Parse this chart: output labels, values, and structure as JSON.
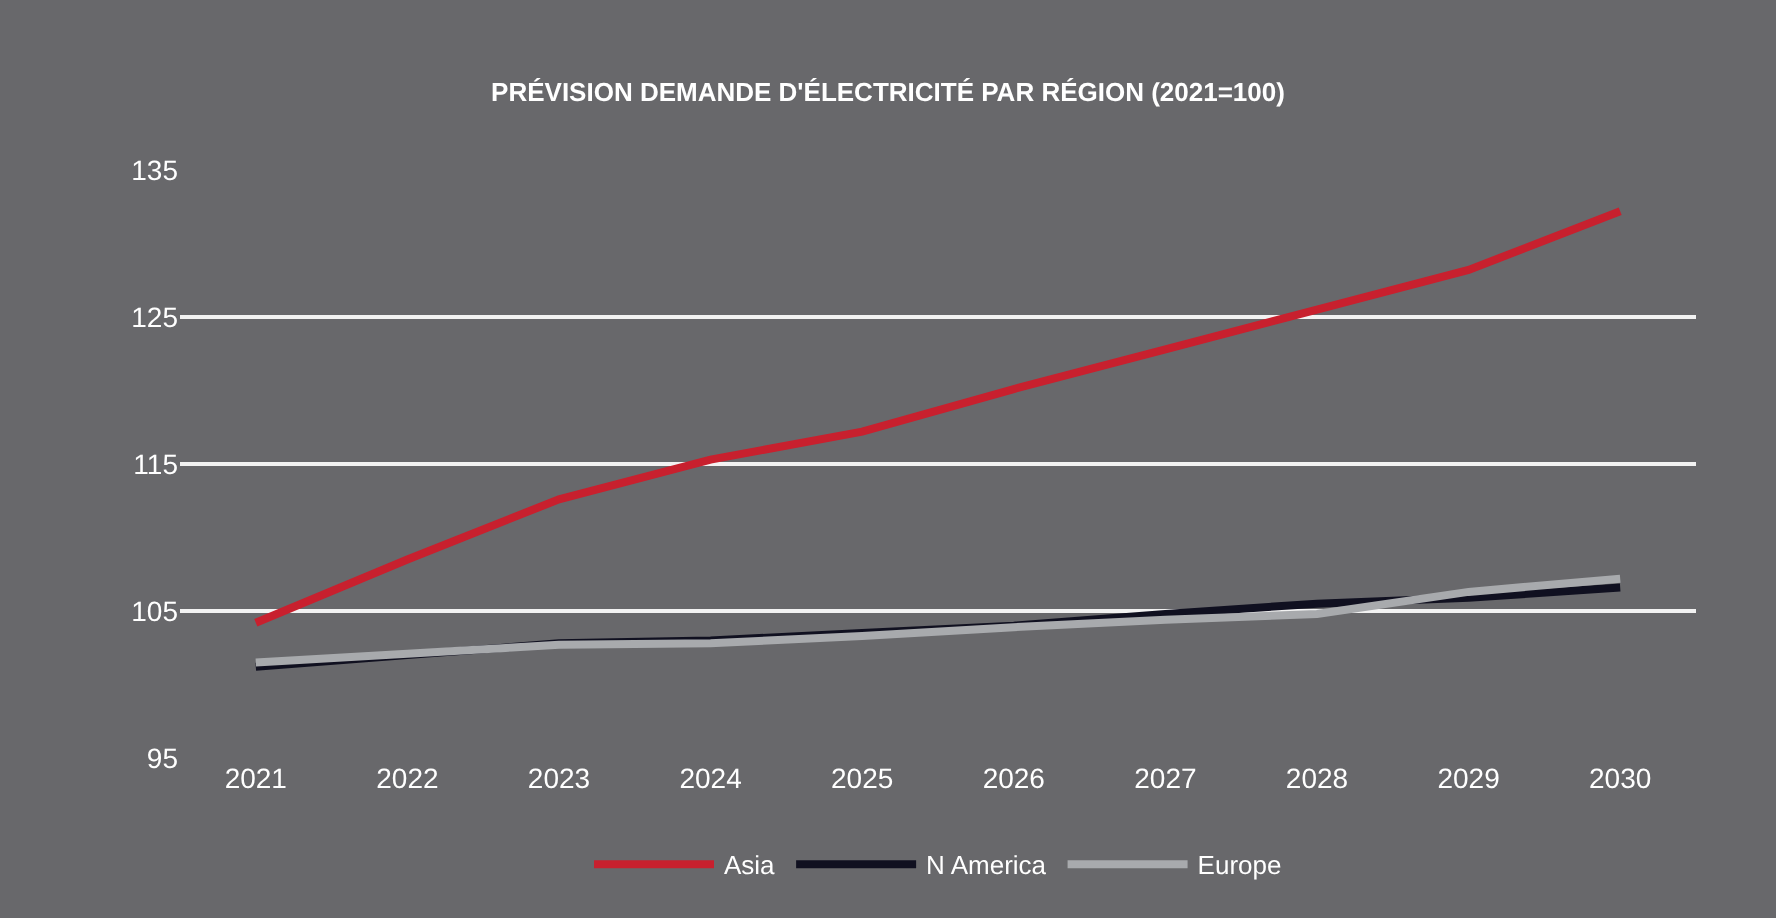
{
  "chart_data": {
    "type": "line",
    "title": "PRÉVISION DEMANDE D'ÉLECTRICITÉ PAR RÉGION (2021=100)",
    "categories": [
      "2021",
      "2022",
      "2023",
      "2024",
      "2025",
      "2026",
      "2027",
      "2028",
      "2029",
      "2030"
    ],
    "series": [
      {
        "name": "Asia",
        "color": "#c8202e",
        "values": [
          104.2,
          108.5,
          112.6,
          115.3,
          117.2,
          120.1,
          122.8,
          125.5,
          128.2,
          132.2
        ]
      },
      {
        "name": "N America",
        "color": "#101020",
        "values": [
          101.2,
          102,
          102.8,
          103,
          103.5,
          104,
          104.8,
          105.5,
          105.9,
          106.6
        ]
      },
      {
        "name": "Europe",
        "color": "#a8aaad",
        "values": [
          101.5,
          102.1,
          102.7,
          102.8,
          103.3,
          103.9,
          104.4,
          104.8,
          106.3,
          107.2
        ]
      }
    ],
    "ylim": [
      95,
      135
    ],
    "yticks": [
      95,
      105,
      115,
      125,
      135
    ],
    "grid": "y",
    "legend": "bottom",
    "marker": "none",
    "line_style": "solid"
  }
}
